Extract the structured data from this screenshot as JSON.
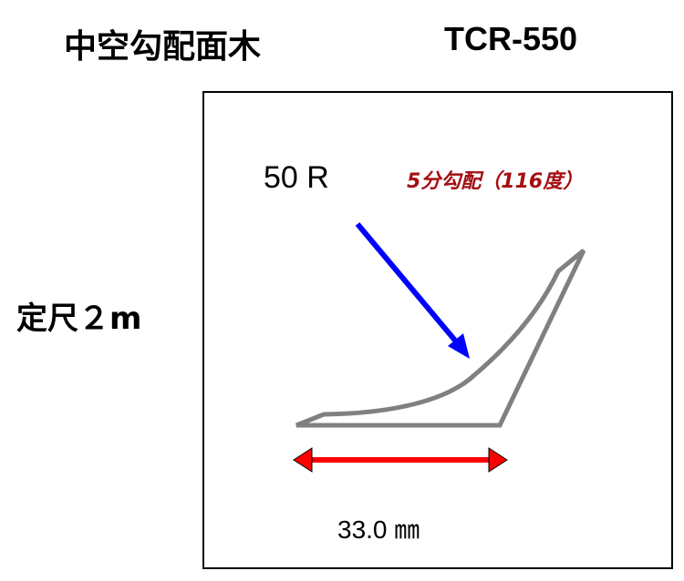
{
  "title": "中空勾配面木",
  "model": "TCR-550",
  "ruler_length": "定尺２m",
  "radius_label": "50 R",
  "slope_label": "5分勾配（116度）",
  "width_label": "33.0 ㎜",
  "colors": {
    "profile": "#808080",
    "radius_arrow": "#0000ff",
    "dimension_arrow": "#ff0000",
    "slope_text": "#a30f12"
  }
}
